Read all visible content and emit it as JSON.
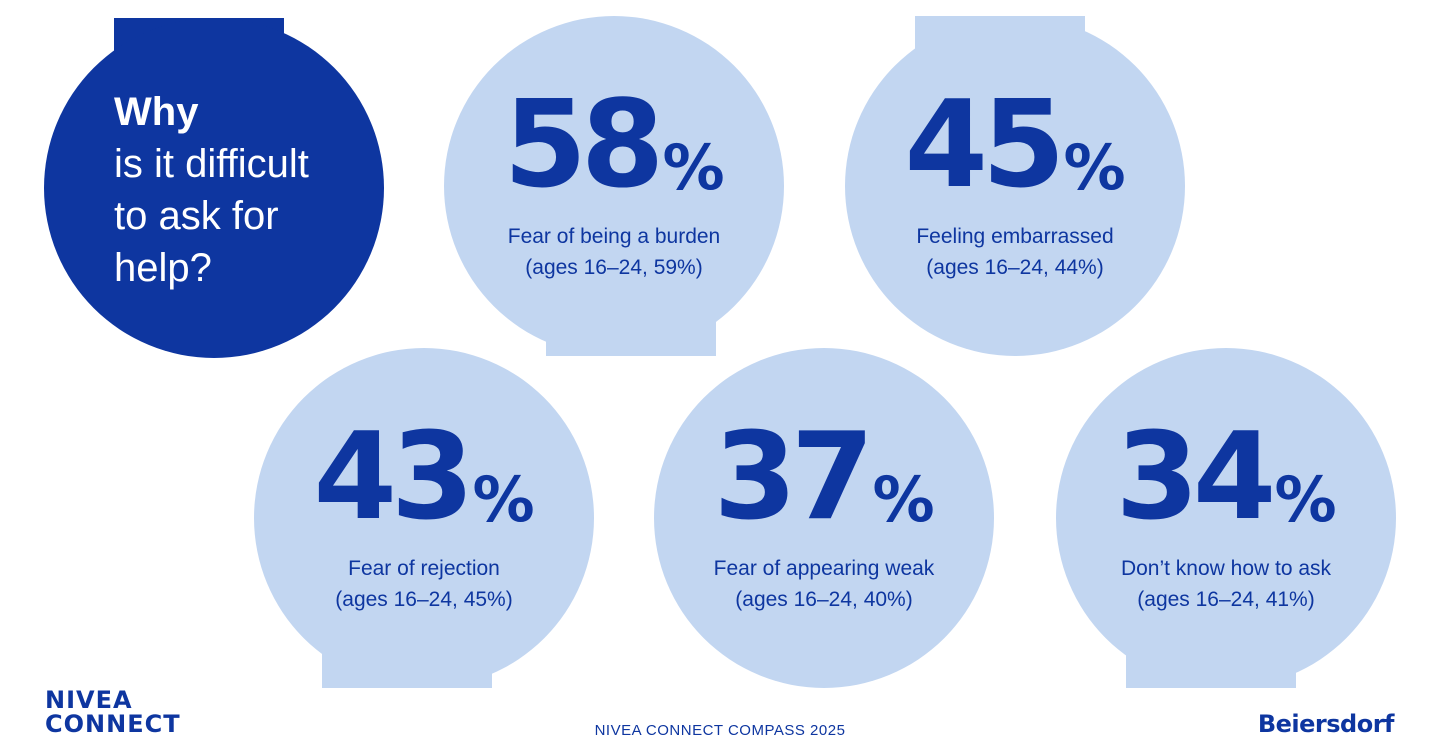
{
  "question": {
    "line1": "Why",
    "line2": "is it difficult",
    "line3": "to ask for",
    "line4": "help?"
  },
  "stats": [
    {
      "number": "58",
      "percent": "%",
      "label": "Fear of being a burden",
      "sub": "(ages 16–24, 59%)"
    },
    {
      "number": "45",
      "percent": "%",
      "label": "Feeling embarrassed",
      "sub": "(ages 16–24, 44%)"
    },
    {
      "number": "43",
      "percent": "%",
      "label": "Fear of rejection",
      "sub": "(ages 16–24, 45%)"
    },
    {
      "number": "37",
      "percent": "%",
      "label": "Fear of appearing weak",
      "sub": "(ages 16–24, 40%)"
    },
    {
      "number": "34",
      "percent": "%",
      "label": "Don’t know how to ask",
      "sub": "(ages 16–24, 41%)"
    }
  ],
  "footer": {
    "logo_line1": "NIVEA",
    "logo_line2": "CONNECT",
    "center": "NIVEA CONNECT COMPASS 2025",
    "brand": "Beiersdorf"
  },
  "colors": {
    "dark_blue": "#0e36a0",
    "light_blue": "#c2d6f1",
    "background": "#ffffff"
  }
}
